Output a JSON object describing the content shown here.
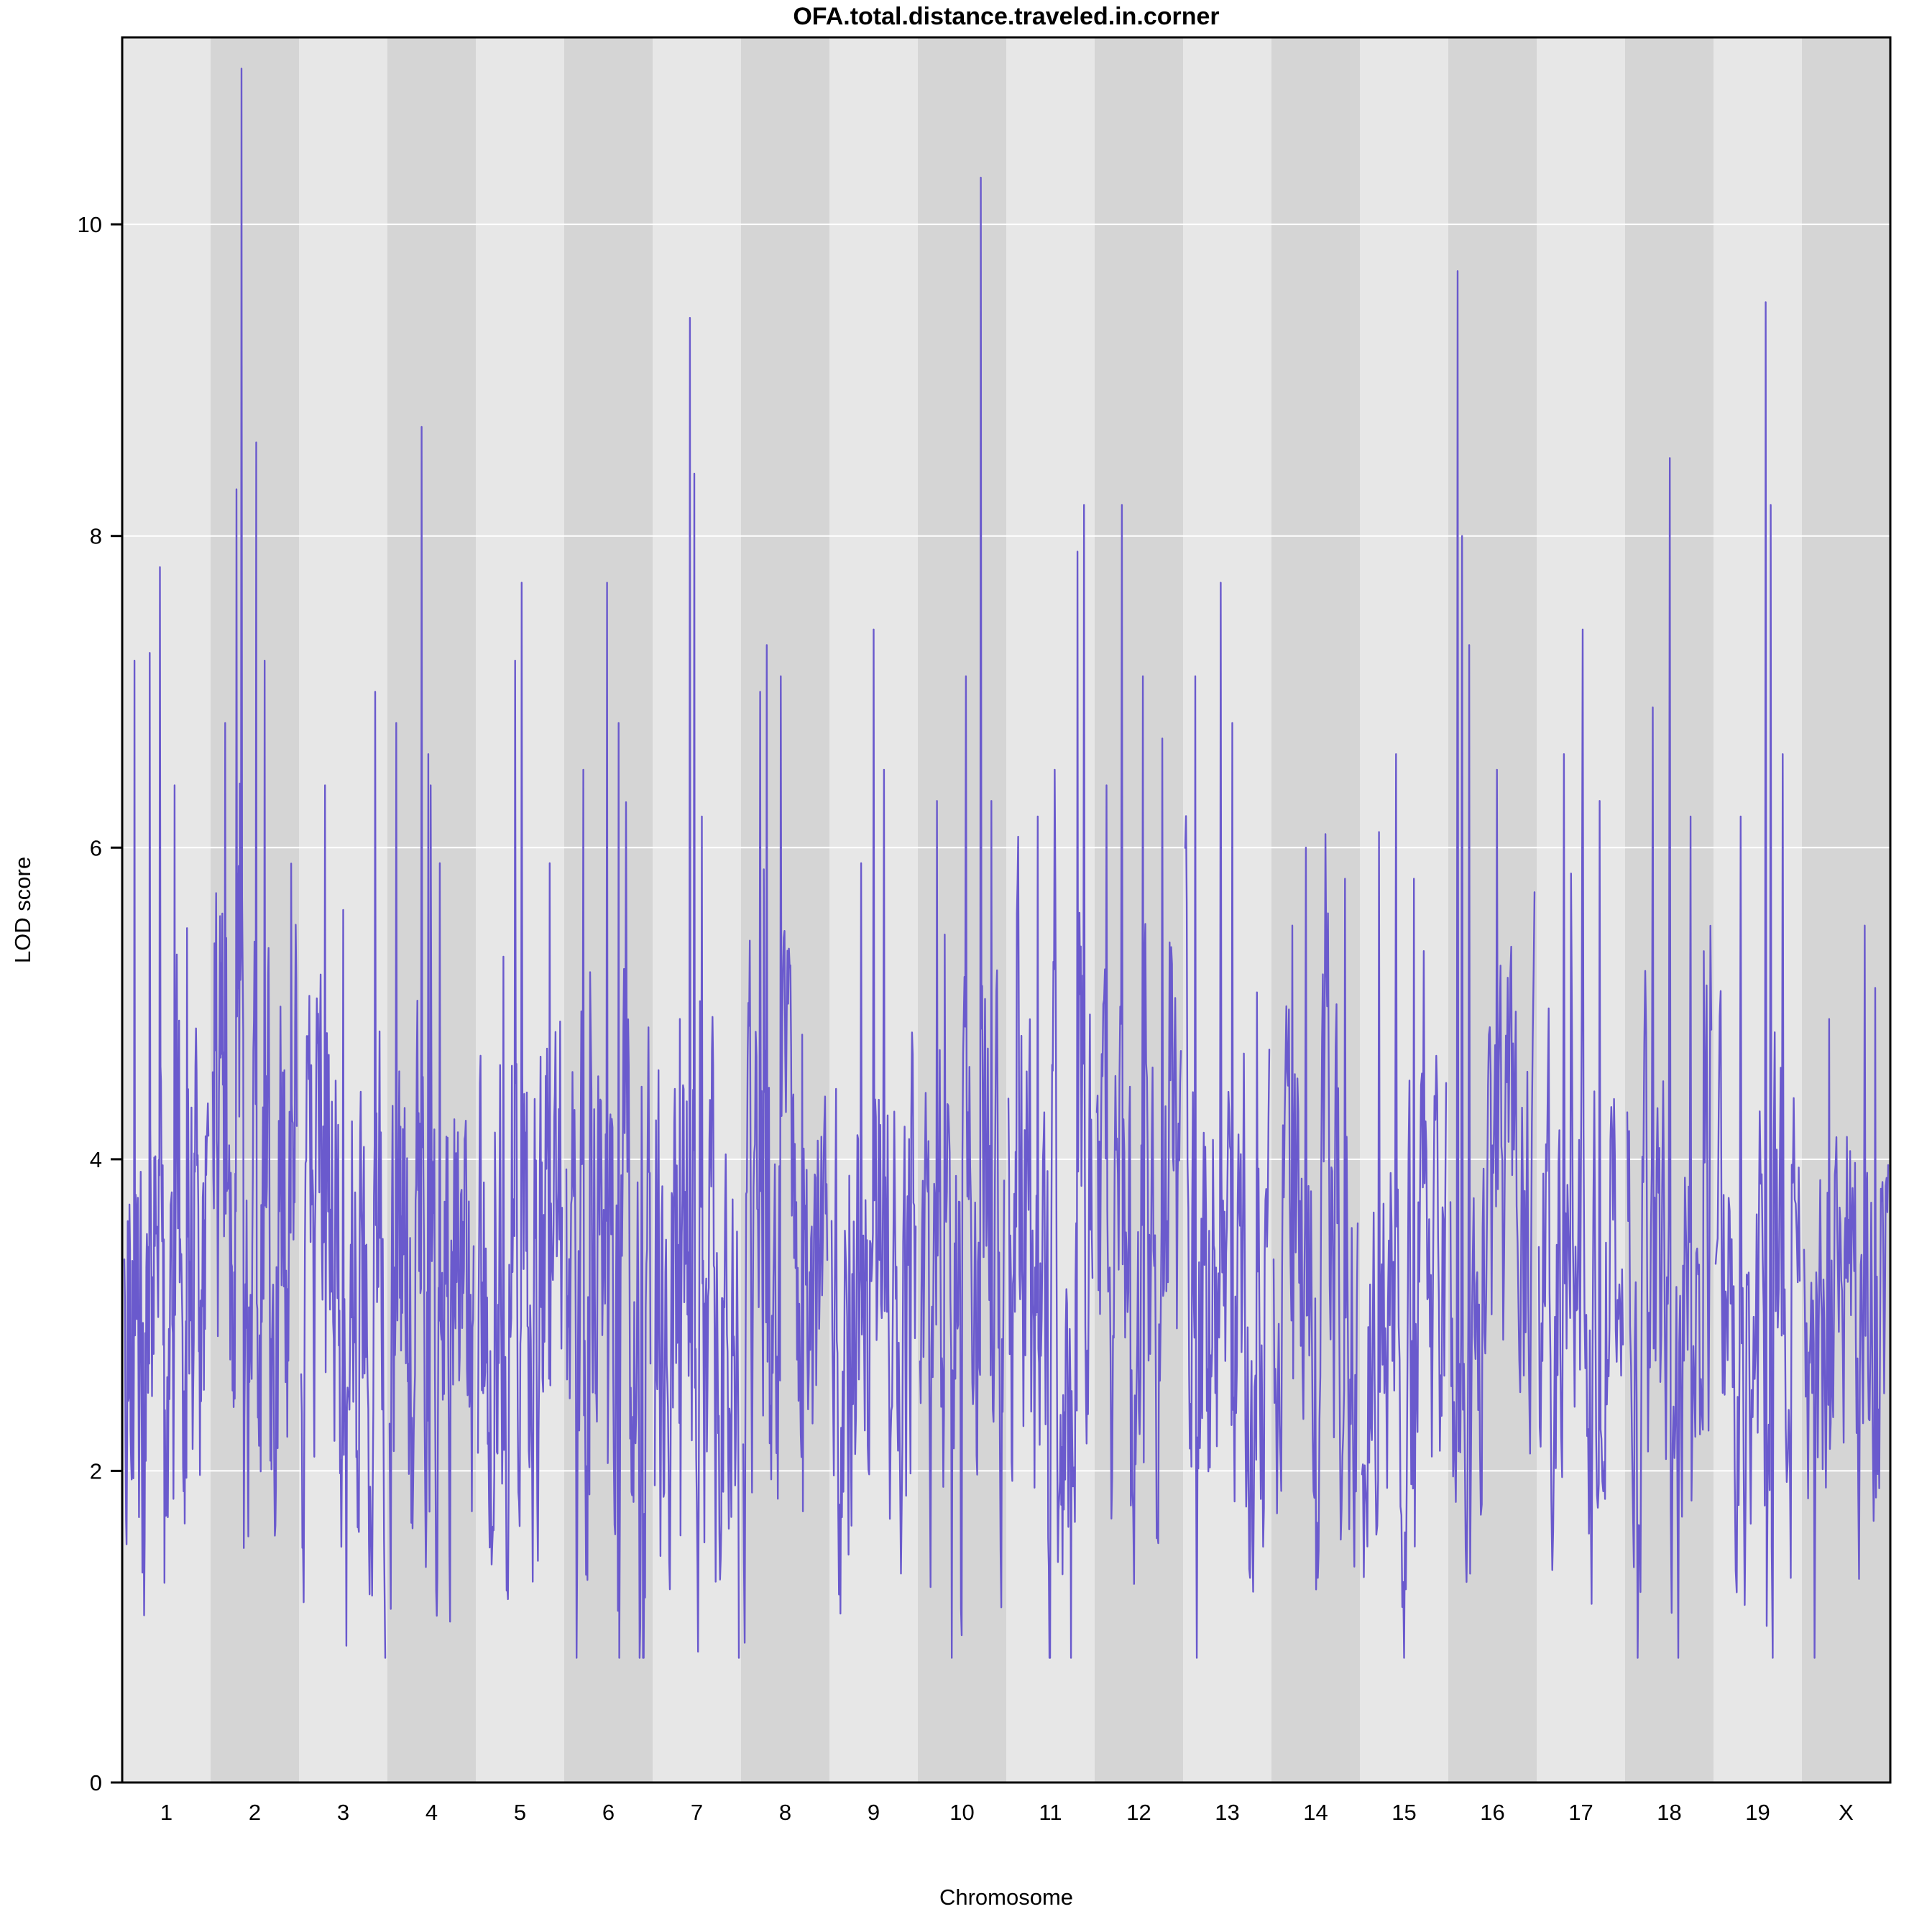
{
  "chart_data": {
    "type": "line",
    "title": "OFA.total.distance.traveled.in.corner",
    "xlabel": "Chromosome",
    "ylabel": "LOD score",
    "ylim": [
      0,
      11.2
    ],
    "yticks": [
      0,
      2,
      4,
      6,
      8,
      10
    ],
    "legend": "none",
    "grid": "horizontal-white-lines-at-ticks",
    "series_color": "#6a5acd",
    "band_color_light": "#e7e7e7",
    "band_color_dark": "#d5d5d5",
    "gridline_color": "#ffffff",
    "chromosomes": [
      {
        "name": "1",
        "points": 150,
        "mean": 3.1,
        "min": 0.9,
        "spikes": [
          {
            "pos": 0.12,
            "value": 7.2
          },
          {
            "pos": 0.3,
            "value": 7.25
          },
          {
            "pos": 0.42,
            "value": 7.8
          },
          {
            "pos": 0.6,
            "value": 6.4
          }
        ]
      },
      {
        "name": "2",
        "points": 150,
        "mean": 3.9,
        "min": 1.0,
        "noise": 1.25,
        "spikes": [
          {
            "pos": 0.15,
            "value": 6.8
          },
          {
            "pos": 0.28,
            "value": 8.3
          },
          {
            "pos": 0.34,
            "value": 11.0
          },
          {
            "pos": 0.52,
            "value": 8.6
          },
          {
            "pos": 0.62,
            "value": 7.2
          }
        ]
      },
      {
        "name": "3",
        "points": 135,
        "mean": 3.3,
        "spikes": [
          {
            "pos": 0.28,
            "value": 6.4
          },
          {
            "pos": 0.5,
            "value": 5.6
          },
          {
            "pos": 0.88,
            "value": 7.0
          }
        ]
      },
      {
        "name": "4",
        "points": 140,
        "mean": 3.1,
        "spikes": [
          {
            "pos": 0.08,
            "value": 6.8
          },
          {
            "pos": 0.38,
            "value": 8.7
          },
          {
            "pos": 0.46,
            "value": 6.6
          },
          {
            "pos": 0.6,
            "value": 5.9
          }
        ]
      },
      {
        "name": "5",
        "points": 130,
        "mean": 3.3,
        "spikes": [
          {
            "pos": 0.3,
            "value": 5.3
          },
          {
            "pos": 0.44,
            "value": 7.2
          },
          {
            "pos": 0.52,
            "value": 7.7
          },
          {
            "pos": 0.85,
            "value": 5.9
          }
        ]
      },
      {
        "name": "6",
        "points": 125,
        "mean": 3.3,
        "spikes": [
          {
            "pos": 0.2,
            "value": 6.5
          },
          {
            "pos": 0.48,
            "value": 7.7
          },
          {
            "pos": 0.62,
            "value": 6.8
          }
        ]
      },
      {
        "name": "7",
        "points": 135,
        "mean": 2.9,
        "spikes": [
          {
            "pos": 0.3,
            "value": 4.9
          },
          {
            "pos": 0.42,
            "value": 9.4
          },
          {
            "pos": 0.47,
            "value": 8.4
          },
          {
            "pos": 0.56,
            "value": 6.2
          }
        ]
      },
      {
        "name": "8",
        "points": 115,
        "mean": 3.0,
        "spikes": [
          {
            "pos": 0.2,
            "value": 7.0
          },
          {
            "pos": 0.28,
            "value": 7.3
          },
          {
            "pos": 0.45,
            "value": 7.1
          },
          {
            "pos": 0.7,
            "value": 4.8
          }
        ]
      },
      {
        "name": "9",
        "points": 115,
        "mean": 3.1,
        "spikes": [
          {
            "pos": 0.35,
            "value": 5.9
          },
          {
            "pos": 0.5,
            "value": 7.4
          },
          {
            "pos": 0.62,
            "value": 6.5
          }
        ]
      },
      {
        "name": "10",
        "points": 120,
        "mean": 3.3,
        "spikes": [
          {
            "pos": 0.2,
            "value": 6.3
          },
          {
            "pos": 0.55,
            "value": 7.1
          },
          {
            "pos": 0.72,
            "value": 10.3
          },
          {
            "pos": 0.85,
            "value": 6.3
          }
        ]
      },
      {
        "name": "11",
        "points": 130,
        "mean": 3.2,
        "spikes": [
          {
            "pos": 0.35,
            "value": 6.2
          },
          {
            "pos": 0.82,
            "value": 7.9
          },
          {
            "pos": 0.9,
            "value": 8.2
          }
        ]
      },
      {
        "name": "12",
        "points": 105,
        "mean": 3.6,
        "spikes": [
          {
            "pos": 0.12,
            "value": 6.4
          },
          {
            "pos": 0.3,
            "value": 8.2
          },
          {
            "pos": 0.55,
            "value": 7.1
          },
          {
            "pos": 0.78,
            "value": 6.7
          }
        ]
      },
      {
        "name": "13",
        "points": 110,
        "mean": 3.2,
        "spikes": [
          {
            "pos": 0.12,
            "value": 7.1
          },
          {
            "pos": 0.42,
            "value": 7.7
          },
          {
            "pos": 0.56,
            "value": 6.8
          }
        ]
      },
      {
        "name": "14",
        "points": 100,
        "mean": 3.3,
        "spikes": [
          {
            "pos": 0.22,
            "value": 5.5
          },
          {
            "pos": 0.38,
            "value": 6.0
          },
          {
            "pos": 0.85,
            "value": 5.8
          }
        ]
      },
      {
        "name": "15",
        "points": 95,
        "mean": 3.1,
        "spikes": [
          {
            "pos": 0.2,
            "value": 6.1
          },
          {
            "pos": 0.4,
            "value": 6.6
          },
          {
            "pos": 0.62,
            "value": 5.8
          }
        ]
      },
      {
        "name": "16",
        "points": 95,
        "mean": 3.5,
        "spikes": [
          {
            "pos": 0.08,
            "value": 9.7
          },
          {
            "pos": 0.14,
            "value": 8.0
          },
          {
            "pos": 0.22,
            "value": 7.3
          },
          {
            "pos": 0.55,
            "value": 6.5
          }
        ]
      },
      {
        "name": "17",
        "points": 95,
        "mean": 3.1,
        "spikes": [
          {
            "pos": 0.3,
            "value": 6.6
          },
          {
            "pos": 0.52,
            "value": 7.4
          },
          {
            "pos": 0.72,
            "value": 6.3
          }
        ]
      },
      {
        "name": "18",
        "points": 90,
        "mean": 3.2,
        "spikes": [
          {
            "pos": 0.3,
            "value": 6.9
          },
          {
            "pos": 0.5,
            "value": 8.5
          },
          {
            "pos": 0.75,
            "value": 6.2
          }
        ]
      },
      {
        "name": "19",
        "points": 85,
        "mean": 2.9,
        "spikes": [
          {
            "pos": 0.3,
            "value": 6.2
          },
          {
            "pos": 0.6,
            "value": 9.5
          },
          {
            "pos": 0.66,
            "value": 8.2
          },
          {
            "pos": 0.8,
            "value": 6.6
          }
        ]
      },
      {
        "name": "X",
        "points": 105,
        "mean": 3.0,
        "noise": 1.0,
        "spikes": [
          {
            "pos": 0.3,
            "value": 4.9
          },
          {
            "pos": 0.72,
            "value": 5.5
          },
          {
            "pos": 0.85,
            "value": 5.1
          }
        ]
      }
    ]
  }
}
